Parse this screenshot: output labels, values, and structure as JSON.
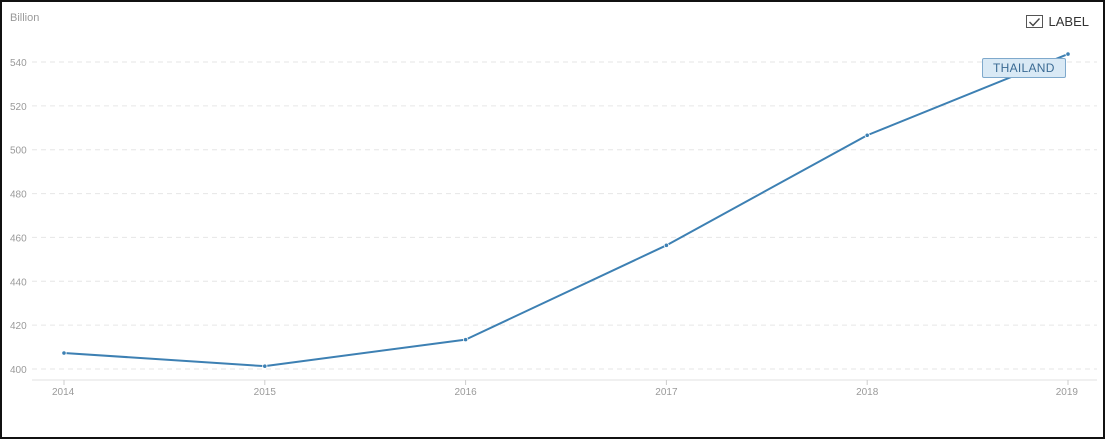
{
  "toggle": {
    "label": "LABEL",
    "checked": true
  },
  "chart_data": {
    "type": "line",
    "unit_label": "Billion",
    "x": [
      "2014",
      "2015",
      "2016",
      "2017",
      "2018",
      "2019"
    ],
    "y_ticks": [
      400,
      420,
      440,
      460,
      480,
      500,
      520,
      540
    ],
    "ylim": [
      400,
      540
    ],
    "grid": true,
    "legend": "none",
    "series": [
      {
        "name": "THAILAND",
        "color": "#3d80b3",
        "values": [
          407.3,
          401.3,
          413.4,
          456.4,
          506.6,
          543.6
        ]
      }
    ]
  }
}
